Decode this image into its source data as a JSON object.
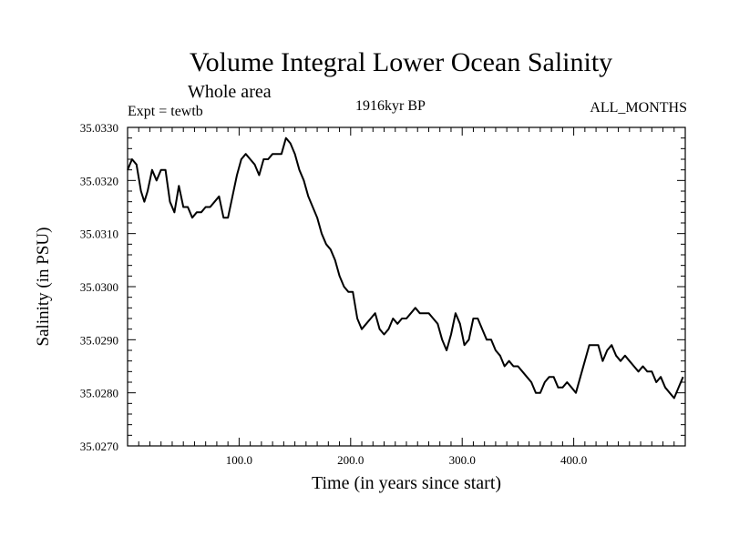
{
  "chart_data": {
    "type": "line",
    "title": "Volume Integral Lower Ocean Salinity",
    "subtitle": "Whole area",
    "experiment_label": "Expt = tewtb",
    "period_label": "1916kyr BP",
    "months_label": "ALL_MONTHS",
    "xlabel": "Time (in years since start)",
    "ylabel": "Salinity (in PSU)",
    "xlim": [
      0,
      500
    ],
    "ylim": [
      35.027,
      35.033
    ],
    "xticks": [
      {
        "value": 100,
        "label": "100.0"
      },
      {
        "value": 200,
        "label": "200.0"
      },
      {
        "value": 300,
        "label": "300.0"
      },
      {
        "value": 400,
        "label": "400.0"
      }
    ],
    "yticks": [
      {
        "value": 35.027,
        "label": "35.0270"
      },
      {
        "value": 35.028,
        "label": "35.0280"
      },
      {
        "value": 35.029,
        "label": "35.0290"
      },
      {
        "value": 35.03,
        "label": "35.0300"
      },
      {
        "value": 35.031,
        "label": "35.0310"
      },
      {
        "value": 35.032,
        "label": "35.0320"
      },
      {
        "value": 35.033,
        "label": "35.0330"
      }
    ],
    "series": [
      {
        "name": "salinity",
        "x": [
          0,
          4,
          8,
          12,
          15,
          18,
          22,
          26,
          30,
          34,
          38,
          42,
          46,
          50,
          54,
          58,
          62,
          66,
          70,
          74,
          78,
          82,
          86,
          90,
          94,
          98,
          102,
          106,
          110,
          114,
          118,
          122,
          126,
          130,
          134,
          138,
          142,
          146,
          150,
          154,
          158,
          162,
          166,
          170,
          174,
          178,
          182,
          186,
          190,
          194,
          198,
          202,
          206,
          210,
          214,
          218,
          222,
          226,
          230,
          234,
          238,
          242,
          246,
          250,
          254,
          258,
          262,
          266,
          270,
          274,
          278,
          282,
          286,
          290,
          294,
          298,
          302,
          306,
          310,
          314,
          318,
          322,
          326,
          330,
          334,
          338,
          342,
          346,
          350,
          354,
          358,
          362,
          366,
          370,
          374,
          378,
          382,
          386,
          390,
          394,
          398,
          402,
          406,
          410,
          414,
          418,
          422,
          426,
          430,
          434,
          438,
          442,
          446,
          450,
          454,
          458,
          462,
          466,
          470,
          474,
          478,
          482,
          486,
          490,
          494,
          498
        ],
        "values": [
          35.0322,
          35.0324,
          35.0323,
          35.0318,
          35.0316,
          35.0318,
          35.0322,
          35.032,
          35.0322,
          35.0322,
          35.0316,
          35.0314,
          35.0319,
          35.0315,
          35.0315,
          35.0313,
          35.0314,
          35.0314,
          35.0315,
          35.0315,
          35.0316,
          35.0317,
          35.0313,
          35.0313,
          35.0317,
          35.0321,
          35.0324,
          35.0325,
          35.0324,
          35.0323,
          35.0321,
          35.0324,
          35.0324,
          35.0325,
          35.0325,
          35.0325,
          35.0328,
          35.0327,
          35.0325,
          35.0322,
          35.032,
          35.0317,
          35.0315,
          35.0313,
          35.031,
          35.0308,
          35.0307,
          35.0305,
          35.0302,
          35.03,
          35.0299,
          35.0299,
          35.0294,
          35.0292,
          35.0293,
          35.0294,
          35.0295,
          35.0292,
          35.0291,
          35.0292,
          35.0294,
          35.0293,
          35.0294,
          35.0294,
          35.0295,
          35.0296,
          35.0295,
          35.0295,
          35.0295,
          35.0294,
          35.0293,
          35.029,
          35.0288,
          35.0291,
          35.0295,
          35.0293,
          35.0289,
          35.029,
          35.0294,
          35.0294,
          35.0292,
          35.029,
          35.029,
          35.0288,
          35.0287,
          35.0285,
          35.0286,
          35.0285,
          35.0285,
          35.0284,
          35.0283,
          35.0282,
          35.028,
          35.028,
          35.0282,
          35.0283,
          35.0283,
          35.0281,
          35.0281,
          35.0282,
          35.0281,
          35.028,
          35.0283,
          35.0286,
          35.0289,
          35.0289,
          35.0289,
          35.0286,
          35.0288,
          35.0289,
          35.0287,
          35.0286,
          35.0287,
          35.0286,
          35.0285,
          35.0284,
          35.0285,
          35.0284,
          35.0284,
          35.0282,
          35.0283,
          35.0281,
          35.028,
          35.0279,
          35.0281,
          35.0283
        ]
      }
    ]
  }
}
